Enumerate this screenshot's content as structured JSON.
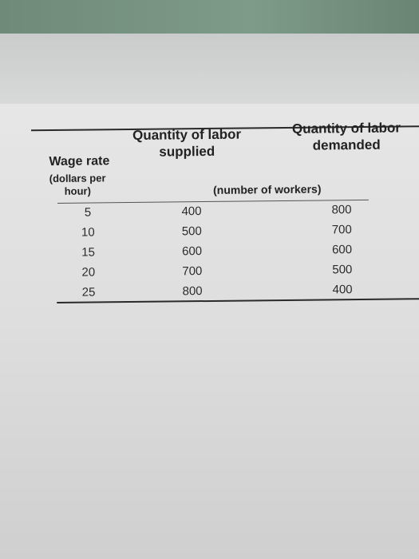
{
  "table": {
    "headers": {
      "wage": "Wage rate",
      "wage_unit": "(dollars per hour)",
      "supplied": "Quantity of labor supplied",
      "demanded": "Quantity of labor demanded",
      "quantity_unit": "(number of workers)"
    },
    "rows": [
      [
        5,
        400,
        800
      ],
      [
        10,
        500,
        700
      ],
      [
        15,
        600,
        600
      ],
      [
        20,
        700,
        500
      ],
      [
        25,
        800,
        400
      ]
    ]
  }
}
